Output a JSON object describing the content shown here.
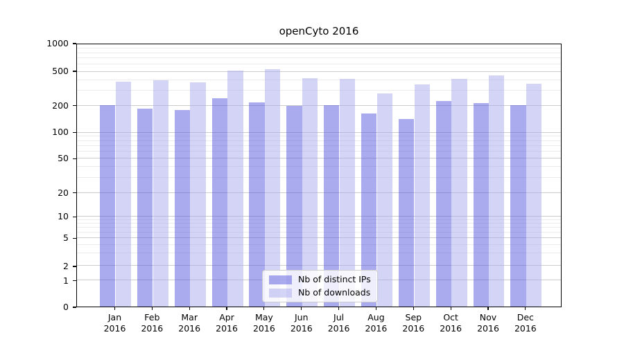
{
  "title": "openCyto 2016",
  "chart_data": {
    "type": "bar",
    "title": "openCyto 2016",
    "xlabel": "",
    "ylabel": "",
    "categories": [
      "Jan\n2016",
      "Feb\n2016",
      "Mar\n2016",
      "Apr\n2016",
      "May\n2016",
      "Jun\n2016",
      "Jul\n2016",
      "Aug\n2016",
      "Sep\n2016",
      "Oct\n2016",
      "Nov\n2016",
      "Dec\n2016"
    ],
    "series": [
      {
        "name": "Nb of distinct IPs",
        "fill": "rgba(85,85,221,0.5)",
        "flat_color": "#aaaaee",
        "values": [
          205,
          185,
          180,
          245,
          220,
          200,
          205,
          165,
          142,
          230,
          217,
          205
        ]
      },
      {
        "name": "Nb of downloads",
        "fill": "rgba(170,170,238,0.5)",
        "flat_color": "#d4d4f6",
        "values": [
          385,
          395,
          380,
          515,
          530,
          425,
          410,
          280,
          355,
          410,
          450,
          360
        ]
      }
    ],
    "legend": {
      "location": "inside lower center",
      "items": [
        "Nb of distinct IPs",
        "Nb of downloads"
      ]
    },
    "y_axis": {
      "scale": "symlog",
      "ylim": [
        0,
        1000
      ],
      "major_ticks": [
        0,
        1,
        2,
        5,
        10,
        20,
        50,
        100,
        200,
        500,
        1000
      ],
      "minor_ticks": [
        3,
        4,
        6,
        7,
        8,
        9,
        30,
        40,
        60,
        70,
        80,
        90,
        300,
        400,
        600,
        700,
        800,
        900
      ],
      "tick_anchor_fractions": [
        [
          0,
          0
        ],
        [
          1,
          0.1
        ],
        [
          2,
          0.155
        ],
        [
          5,
          0.262
        ],
        [
          10,
          0.343
        ],
        [
          20,
          0.434
        ],
        [
          50,
          0.564
        ],
        [
          100,
          0.663
        ],
        [
          200,
          0.765
        ],
        [
          500,
          0.895
        ],
        [
          1000,
          1.0
        ]
      ],
      "grid": "on"
    },
    "colors": {
      "grid_major": "#cbcbcb",
      "grid_minor": "#ebebeb",
      "spine": "#000000",
      "background": "#ffffff"
    }
  }
}
